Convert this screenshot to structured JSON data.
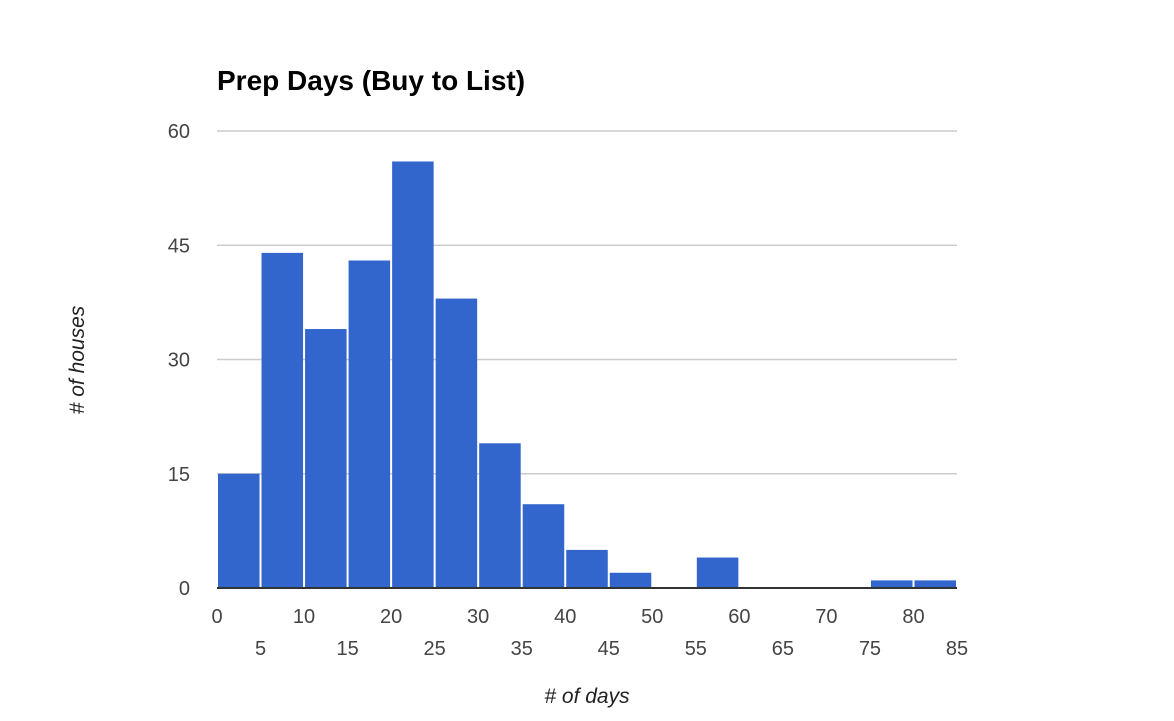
{
  "colors": {
    "bar": "#3366cc",
    "grid": "#cccccc",
    "baseline": "#333333"
  },
  "chart_data": {
    "type": "bar",
    "title": "Prep Days (Buy to List)",
    "xlabel": "# of days",
    "ylabel": "# of houses",
    "bin_width": 5,
    "bins": [
      {
        "x0": 0,
        "x1": 5,
        "value": 15
      },
      {
        "x0": 5,
        "x1": 10,
        "value": 44
      },
      {
        "x0": 10,
        "x1": 15,
        "value": 34
      },
      {
        "x0": 15,
        "x1": 20,
        "value": 43
      },
      {
        "x0": 20,
        "x1": 25,
        "value": 56
      },
      {
        "x0": 25,
        "x1": 30,
        "value": 38
      },
      {
        "x0": 30,
        "x1": 35,
        "value": 19
      },
      {
        "x0": 35,
        "x1": 40,
        "value": 11
      },
      {
        "x0": 40,
        "x1": 45,
        "value": 5
      },
      {
        "x0": 45,
        "x1": 50,
        "value": 2
      },
      {
        "x0": 50,
        "x1": 55,
        "value": 0
      },
      {
        "x0": 55,
        "x1": 60,
        "value": 4
      },
      {
        "x0": 60,
        "x1": 65,
        "value": 0
      },
      {
        "x0": 65,
        "x1": 70,
        "value": 0
      },
      {
        "x0": 70,
        "x1": 75,
        "value": 0
      },
      {
        "x0": 75,
        "x1": 80,
        "value": 1
      },
      {
        "x0": 80,
        "x1": 85,
        "value": 1
      }
    ],
    "xlim": [
      0,
      85
    ],
    "ylim": [
      0,
      60
    ],
    "y_ticks": [
      "0",
      "15",
      "30",
      "45",
      "60"
    ],
    "x_ticks_upper": [
      "0",
      "10",
      "20",
      "30",
      "40",
      "50",
      "60",
      "70",
      "80"
    ],
    "x_ticks_lower": [
      "5",
      "15",
      "25",
      "35",
      "45",
      "55",
      "65",
      "75",
      "85"
    ],
    "grid": true,
    "legend": "none"
  }
}
